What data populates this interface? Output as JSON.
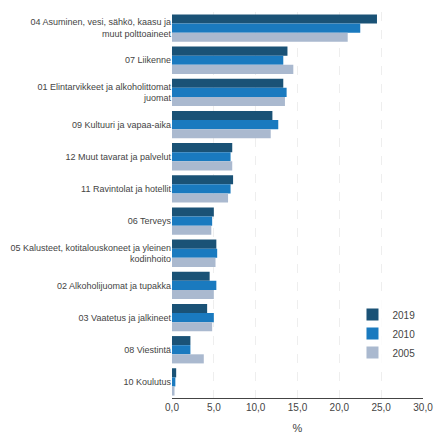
{
  "chart_data": {
    "type": "bar",
    "orientation": "horizontal",
    "categories": [
      "04 Asuminen, vesi, sähkö, kaasu ja\nmuut polttoaineet",
      "07 Liikenne",
      "01 Elintarvikkeet ja alkoholittomat\njuomat",
      "09 Kultuuri ja vapaa-aika",
      "12 Muut tavarat ja palvelut",
      "11 Ravintolat ja hotellit",
      "06 Terveys",
      "05 Kalusteet, kotitalouskoneet ja yleinen\nkodinhoito",
      "02 Alkoholijuomat ja tupakka",
      "03 Vaatetus ja jalkineet",
      "08 Viestintä",
      "10 Koulutus"
    ],
    "series": [
      {
        "name": "2019",
        "color": "#1a5276",
        "values": [
          24.5,
          13.8,
          13.3,
          12.0,
          7.2,
          7.3,
          5.0,
          5.3,
          4.5,
          4.2,
          2.2,
          0.5
        ]
      },
      {
        "name": "2010",
        "color": "#1a7abf",
        "values": [
          22.5,
          13.3,
          13.7,
          12.7,
          7.0,
          7.0,
          4.8,
          5.4,
          5.3,
          5.0,
          2.2,
          0.4
        ]
      },
      {
        "name": "2005",
        "color": "#aab9cf",
        "values": [
          21.0,
          14.5,
          13.5,
          11.8,
          7.2,
          6.7,
          4.7,
          5.2,
          5.0,
          4.8,
          3.8,
          0.3
        ]
      }
    ],
    "xlabel": "%",
    "xlim": [
      0,
      30.0
    ],
    "xticks": [
      {
        "value": 0.0,
        "label": "0,0"
      },
      {
        "value": 5.0,
        "label": "5,0"
      },
      {
        "value": 10.0,
        "label": "10,0"
      },
      {
        "value": 15.0,
        "label": "15,0"
      },
      {
        "value": 20.0,
        "label": "20,0"
      },
      {
        "value": 25.0,
        "label": "25,0"
      },
      {
        "value": 30.0,
        "label": "30,0"
      }
    ],
    "grid": true,
    "legend": "lower right"
  }
}
